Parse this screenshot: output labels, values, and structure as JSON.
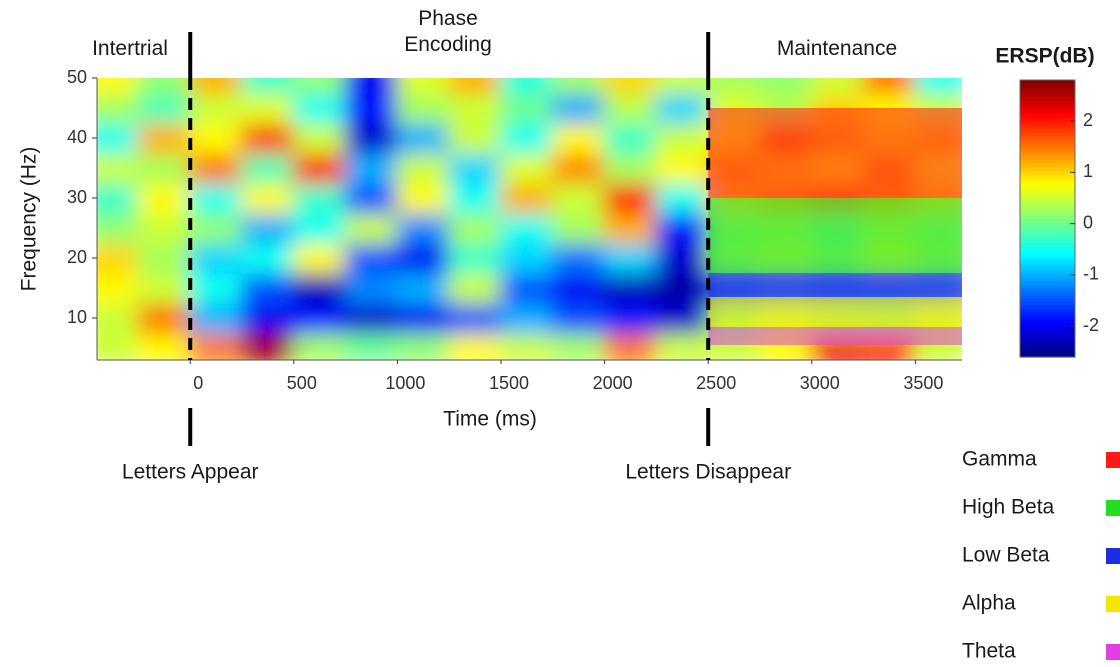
{
  "chart_data": {
    "type": "heatmap",
    "x_label": "Time (ms)",
    "y_label": "Frequency (Hz)",
    "x": [
      -375,
      -125,
      125,
      375,
      625,
      875,
      1125,
      1375,
      1625,
      1875,
      2125,
      2375,
      2625,
      2875,
      3125,
      3375,
      3625
    ],
    "y": [
      5,
      10,
      15,
      20,
      25,
      30,
      35,
      40,
      45,
      50
    ],
    "z": [
      [
        0.5,
        0.8,
        1.5,
        2.6,
        0.3,
        0,
        0.2,
        0.8,
        0.5,
        0.3,
        1.5,
        0.5,
        0.5,
        0.8,
        2.2,
        2.0,
        0.5
      ],
      [
        0.5,
        1.5,
        -1,
        -2,
        -1.8,
        -2.2,
        -2,
        -1.5,
        -1,
        -1.5,
        -1.8,
        -2.2,
        0.2,
        0.5,
        0.3,
        0.2,
        0.5
      ],
      [
        0.8,
        0.5,
        -0.5,
        -1.5,
        -2.3,
        -1.2,
        -1,
        0.5,
        -1.5,
        -2,
        -2.3,
        -2.4,
        -1.8,
        -1.5,
        -1.8,
        -1.6,
        -1.5
      ],
      [
        1.0,
        0.3,
        -0.8,
        -0.5,
        0.8,
        -1.5,
        -2,
        -0.3,
        -0.8,
        -1.3,
        -0.8,
        -2.2,
        0.3,
        0.5,
        0.2,
        0.6,
        0.3
      ],
      [
        0.2,
        0.5,
        0.2,
        -1,
        -0.5,
        0.5,
        -1.2,
        0.3,
        -0.5,
        0.3,
        1.2,
        -1.8,
        0.2,
        0.3,
        0,
        0.4,
        0.2
      ],
      [
        -0.3,
        0.8,
        -0.5,
        0.8,
        -0.3,
        -1.5,
        0.8,
        -0.5,
        1.2,
        0.5,
        2.0,
        -0.5,
        1.0,
        1.2,
        1.5,
        1.2,
        1.0
      ],
      [
        0.5,
        0.3,
        1.5,
        -0.2,
        2.0,
        -1,
        0.5,
        -0.8,
        0.6,
        1.4,
        0.3,
        0.8,
        1.2,
        1.0,
        0.8,
        1.3,
        0.7
      ],
      [
        -0.5,
        1.2,
        0.8,
        1.8,
        0.5,
        -2.2,
        -1,
        0.5,
        -0.5,
        0.8,
        -0.3,
        0.5,
        0.8,
        1.5,
        1.2,
        0.9,
        1.1
      ],
      [
        0.3,
        -0.2,
        0.5,
        0.6,
        -0.5,
        -1.8,
        0.3,
        0.5,
        0,
        -1,
        0.4,
        -0.8,
        0.6,
        0.4,
        1.0,
        0.8,
        0.5
      ],
      [
        0.8,
        0.2,
        1.2,
        -0.3,
        0.2,
        -2,
        0.6,
        1.2,
        -0.4,
        0.3,
        1.0,
        0.5,
        0.3,
        0.2,
        0.5,
        1.5,
        -0.5
      ]
    ],
    "xlim": [
      -450,
      3725
    ],
    "ylim": [
      3,
      50
    ],
    "xticks": [
      0,
      500,
      1000,
      1500,
      2000,
      2500,
      3000,
      3500
    ],
    "yticks": [
      10,
      20,
      30,
      40,
      50
    ],
    "colorbar": {
      "title": "ERSP(dB)",
      "clim": [
        -2.6,
        2.8
      ],
      "ticks": [
        -2,
        -1,
        0,
        1,
        2
      ],
      "colormap": "jet"
    },
    "phases": [
      {
        "label": "Intertrial"
      },
      {
        "label": "Phase Encoding"
      },
      {
        "label": "Maintenance"
      }
    ],
    "events": [
      {
        "x": 0,
        "label": "Letters Appear"
      },
      {
        "x": 2500,
        "label": "Letters Disappear"
      }
    ],
    "bands": [
      {
        "name": "Gamma",
        "color": "#ff1a1a",
        "range": [
          30,
          45
        ]
      },
      {
        "name": "High Beta",
        "color": "#22dd22",
        "range": [
          17.5,
          30
        ]
      },
      {
        "name": "Low Beta",
        "color": "#1a2ee0",
        "range": [
          13.5,
          17.5
        ]
      },
      {
        "name": "Alpha",
        "color": "#f5e600",
        "range": [
          8.5,
          13.5
        ]
      },
      {
        "name": "Theta",
        "color": "#e040e0",
        "range": [
          5.5,
          8.5
        ]
      }
    ]
  }
}
